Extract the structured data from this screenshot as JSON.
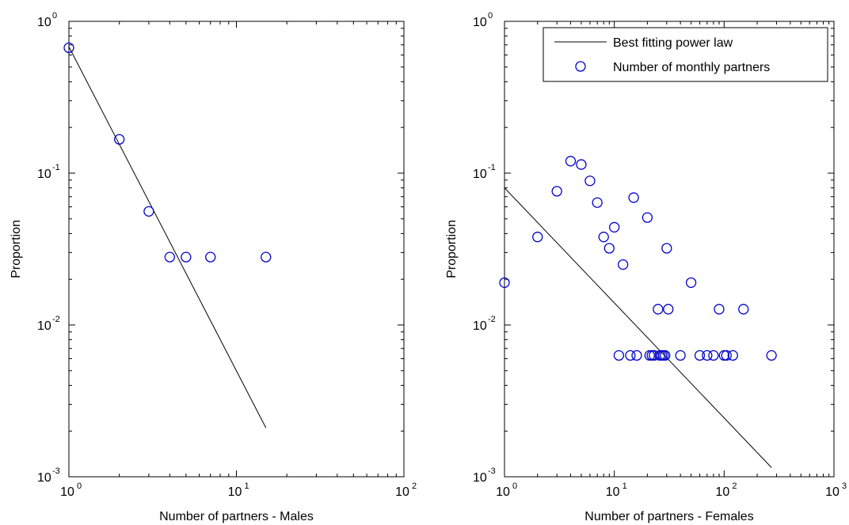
{
  "line_color": "#000000",
  "marker_color": "#0000cc",
  "chart_data": [
    {
      "type": "scatter",
      "xlabel": "Number of partners - Males",
      "ylabel": "Proportion",
      "xscale": "log",
      "yscale": "log",
      "xlim": [
        1,
        100
      ],
      "ylim": [
        0.001,
        1
      ],
      "x_ticks": [
        {
          "value": 1,
          "base": "10",
          "exp": "0"
        },
        {
          "value": 10,
          "base": "10",
          "exp": "1"
        },
        {
          "value": 100,
          "base": "10",
          "exp": "2"
        }
      ],
      "y_ticks": [
        {
          "value": 0.001,
          "base": "10",
          "exp": "-3"
        },
        {
          "value": 0.01,
          "base": "10",
          "exp": "-2"
        },
        {
          "value": 0.1,
          "base": "10",
          "exp": "-1"
        },
        {
          "value": 1,
          "base": "10",
          "exp": "0"
        }
      ],
      "grid": false,
      "legend": null,
      "fit_line": {
        "x": [
          1,
          15
        ],
        "y": [
          0.68,
          0.0021
        ]
      },
      "points": {
        "x": [
          1,
          2,
          3,
          4,
          5,
          7,
          15
        ],
        "y": [
          0.67,
          0.167,
          0.056,
          0.028,
          0.028,
          0.028,
          0.028
        ]
      }
    },
    {
      "type": "scatter",
      "xlabel": "Number of partners - Females",
      "ylabel": "Proportion",
      "xscale": "log",
      "yscale": "log",
      "xlim": [
        1,
        1000
      ],
      "ylim": [
        0.001,
        1
      ],
      "x_ticks": [
        {
          "value": 1,
          "base": "10",
          "exp": "0"
        },
        {
          "value": 10,
          "base": "10",
          "exp": "1"
        },
        {
          "value": 100,
          "base": "10",
          "exp": "2"
        },
        {
          "value": 1000,
          "base": "10",
          "exp": "3"
        }
      ],
      "y_ticks": [
        {
          "value": 0.001,
          "base": "10",
          "exp": "-3"
        },
        {
          "value": 0.01,
          "base": "10",
          "exp": "-2"
        },
        {
          "value": 0.1,
          "base": "10",
          "exp": "-1"
        },
        {
          "value": 1,
          "base": "10",
          "exp": "0"
        }
      ],
      "grid": false,
      "legend": {
        "placement": "top-right",
        "entries": [
          "Best fitting power law",
          "Number of monthly partners"
        ]
      },
      "fit_line": {
        "x": [
          1,
          270
        ],
        "y": [
          0.08,
          0.00115
        ]
      },
      "points": {
        "x": [
          1,
          2,
          3,
          4,
          5,
          6,
          7,
          8,
          9,
          10,
          12,
          15,
          20,
          30,
          50,
          90,
          150,
          25,
          31,
          11,
          14,
          16,
          21,
          22,
          23,
          26,
          27,
          28,
          29,
          40,
          60,
          70,
          80,
          100,
          105,
          120,
          270
        ],
        "y": [
          0.019,
          0.038,
          0.076,
          0.12,
          0.114,
          0.089,
          0.064,
          0.038,
          0.032,
          0.044,
          0.025,
          0.069,
          0.051,
          0.032,
          0.019,
          0.0127,
          0.0127,
          0.0127,
          0.0127,
          0.0063,
          0.0063,
          0.0063,
          0.0063,
          0.0063,
          0.0063,
          0.0063,
          0.0063,
          0.0063,
          0.0063,
          0.0063,
          0.0063,
          0.0063,
          0.0063,
          0.0063,
          0.0063,
          0.0063,
          0.0063
        ]
      }
    }
  ]
}
